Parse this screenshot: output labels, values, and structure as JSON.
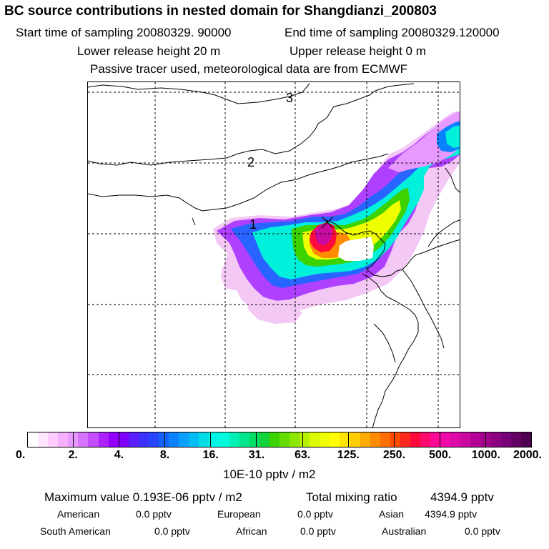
{
  "header": {
    "title": "BC  source contributions in nested domain for Shangdianzi_200803",
    "start_label": "Start time of sampling 20080329. 90000",
    "end_label": "End time of sampling 20080329.120000",
    "lower_label": "Lower release height   20 m",
    "upper_label": "Upper release height    0 m",
    "passive_label": "Passive tracer used, meteorological data are from ECMWF"
  },
  "map": {
    "region_labels": [
      "1",
      "2",
      "3"
    ],
    "receptor_marker": "x-mark-icon"
  },
  "colorbar": {
    "tick_labels": [
      "0.",
      "2.",
      "4.",
      "8.",
      "16.",
      "31.",
      "63.",
      "125.",
      "250.",
      "500.",
      "1000.",
      "2000."
    ],
    "colors": [
      "#ffffff",
      "#ffe6ff",
      "#ffccff",
      "#f5b0ff",
      "#e899ff",
      "#d673ff",
      "#c44dff",
      "#ac22ff",
      "#9400ff",
      "#8000ff",
      "#5a1eff",
      "#3c32ff",
      "#2846ff",
      "#1464ff",
      "#0a82ff",
      "#0aa0ff",
      "#00bef5",
      "#00dce6",
      "#00f5e6",
      "#00fadc",
      "#00f0b4",
      "#00e68c",
      "#00dc64",
      "#14d23c",
      "#3cd200",
      "#64dc00",
      "#8ce600",
      "#b4f000",
      "#dcfa00",
      "#f0ff00",
      "#ffff00",
      "#ffe600",
      "#ffcd00",
      "#ffaa00",
      "#ff8c00",
      "#ff6e00",
      "#ff4b00",
      "#ff281e",
      "#ff0a3c",
      "#ff0a6e",
      "#ff0a96",
      "#f00aaa",
      "#dc0aaa",
      "#c80aa0",
      "#b40096",
      "#a0008c",
      "#8c0080",
      "#780078",
      "#640064",
      "#500050"
    ],
    "unit": "10E-10 pptv / m2"
  },
  "stats": {
    "max_value": "Maximum value  0.193E-06 pptv / m2",
    "total_mixing": "Total mixing ratio",
    "total_value": "4394.9 pptv",
    "american_label": "American",
    "american_value": "0.0 pptv",
    "european_label": "European",
    "european_value": "0.0 pptv",
    "asian_label": "Asian",
    "asian_value": "4394.9 pptv",
    "south_american_label": "South American",
    "south_american_value": "0.0 pptv",
    "african_label": "African",
    "african_value": "0.0 pptv",
    "australian_label": "Australian",
    "australian_value": "0.0 pptv"
  }
}
